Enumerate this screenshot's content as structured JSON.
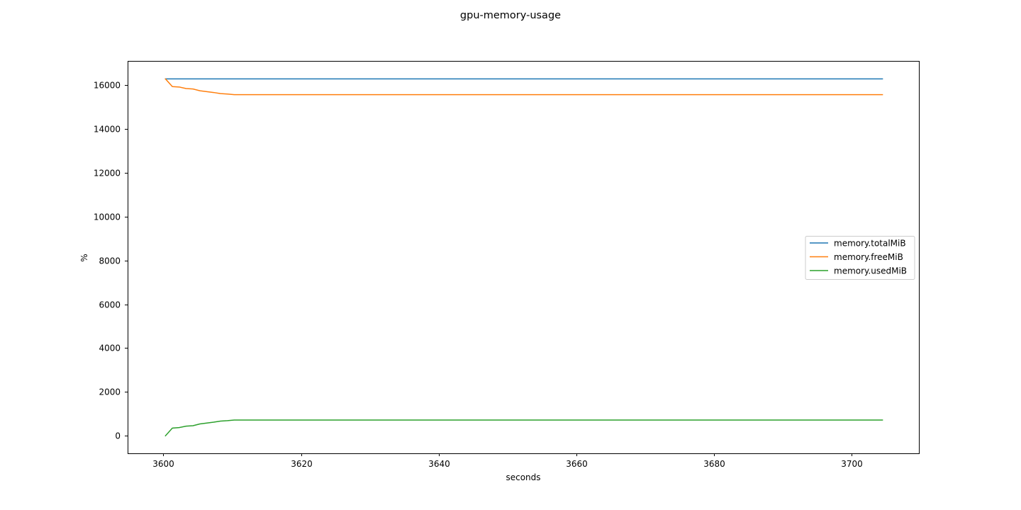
{
  "chart_data": {
    "type": "line",
    "title": "gpu-memory-usage",
    "xlabel": "seconds",
    "ylabel": "%",
    "xlim": [
      3594.8,
      3709.8
    ],
    "ylim": [
      -800,
      17100
    ],
    "xticks": [
      3600,
      3620,
      3640,
      3660,
      3680,
      3700
    ],
    "yticks": [
      0,
      2000,
      4000,
      6000,
      8000,
      10000,
      12000,
      14000,
      16000
    ],
    "grid": false,
    "legend_position": "center-right",
    "x": [
      3600.3,
      3601.3,
      3602.3,
      3603.3,
      3604.3,
      3605.3,
      3606.3,
      3607.3,
      3608.3,
      3609.3,
      3610.3,
      3620,
      3640,
      3660,
      3680,
      3700,
      3704.5
    ],
    "series": [
      {
        "name": "memory.totalMiB",
        "color": "#1f77b4",
        "values": [
          16280,
          16280,
          16280,
          16280,
          16280,
          16280,
          16280,
          16280,
          16280,
          16280,
          16280,
          16280,
          16280,
          16280,
          16280,
          16280,
          16280
        ]
      },
      {
        "name": "memory.freeMiB",
        "color": "#ff7f0e",
        "values": [
          16280,
          15930,
          15910,
          15840,
          15820,
          15740,
          15700,
          15660,
          15610,
          15590,
          15560,
          15560,
          15560,
          15560,
          15560,
          15560,
          15560
        ]
      },
      {
        "name": "memory.usedMiB",
        "color": "#2ca02c",
        "values": [
          0,
          350,
          375,
          440,
          460,
          540,
          580,
          620,
          670,
          690,
          720,
          720,
          720,
          720,
          720,
          720,
          720
        ]
      }
    ]
  }
}
